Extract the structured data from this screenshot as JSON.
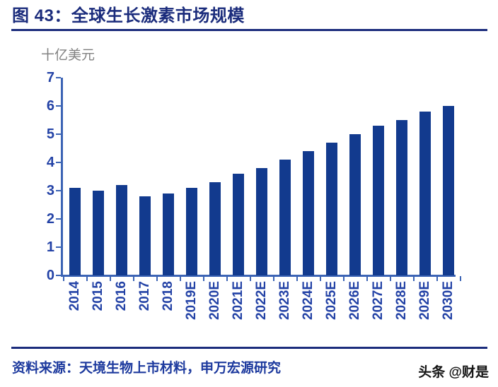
{
  "header": {
    "title": "图 43：全球生长激素市场规模"
  },
  "chart_data": {
    "type": "bar",
    "title": "全球生长激素市场规模",
    "unit_label": "十亿美元",
    "categories": [
      "2014",
      "2015",
      "2016",
      "2017",
      "2018",
      "2019E",
      "2020E",
      "2021E",
      "2022E",
      "2023E",
      "2024E",
      "2025E",
      "2026E",
      "2027E",
      "2028E",
      "2029E",
      "2030E"
    ],
    "values": [
      3.1,
      3.0,
      3.2,
      2.8,
      2.9,
      3.1,
      3.3,
      3.6,
      3.8,
      4.1,
      4.4,
      4.7,
      5.0,
      5.3,
      5.5,
      5.8,
      6.0
    ],
    "xlabel": "",
    "ylabel": "十亿美元",
    "ylim": [
      0,
      7
    ],
    "ytick_step": 1,
    "grid": false,
    "legend": "none",
    "bar_color": "#123a8e",
    "axis_color": "#3c64b5",
    "tick_label_color": "#2342a6"
  },
  "footer": {
    "source": "资料来源：天境生物上市材料，申万宏源研究",
    "watermark": "头条 @财是"
  },
  "colors": {
    "title_navy": "#1b2c7c",
    "bar_blue": "#123a8e",
    "axis_blue": "#3c64b5",
    "label_blue": "#2342a6",
    "unit_gray": "#818181",
    "watermark_black": "#141414"
  }
}
